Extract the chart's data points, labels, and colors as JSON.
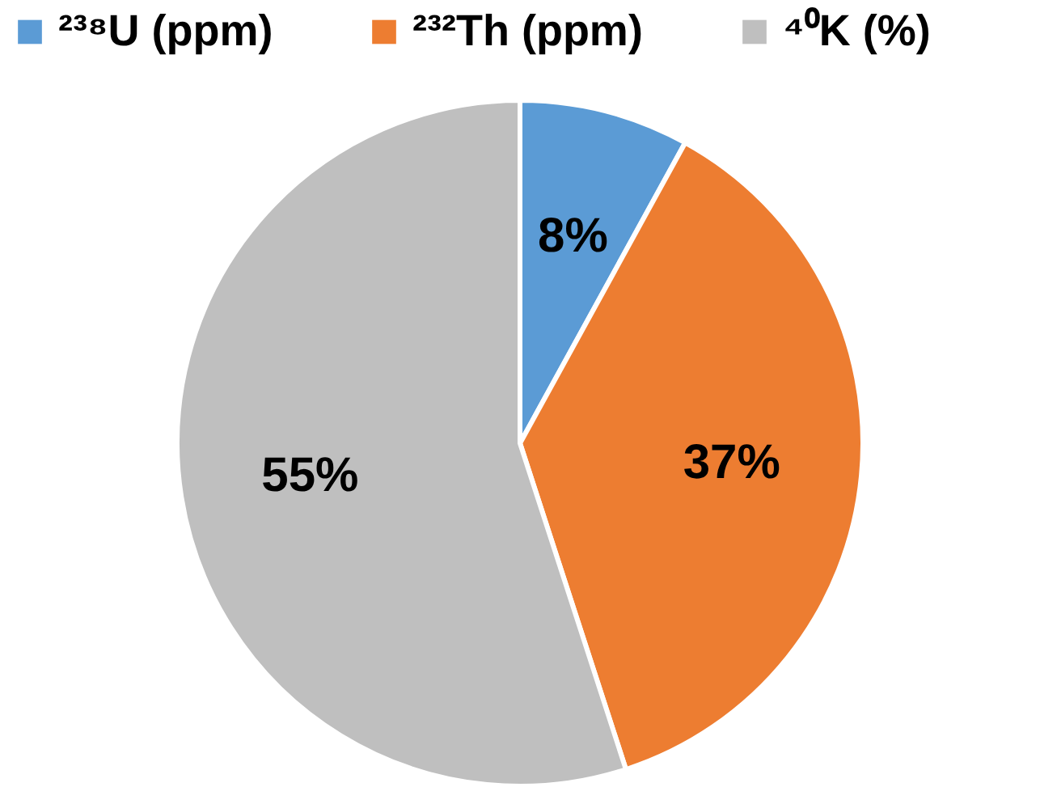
{
  "chart_data": {
    "type": "pie",
    "categories": [
      "²³⁸U (ppm)",
      "²³²Th (ppm)",
      "⁴⁰K (%)"
    ],
    "values": [
      8,
      37,
      55
    ],
    "colors": [
      "#5b9bd5",
      "#ed7d31",
      "#bfbfbf"
    ],
    "value_labels": [
      "8%",
      "37%",
      "55%"
    ],
    "legend": "top"
  }
}
